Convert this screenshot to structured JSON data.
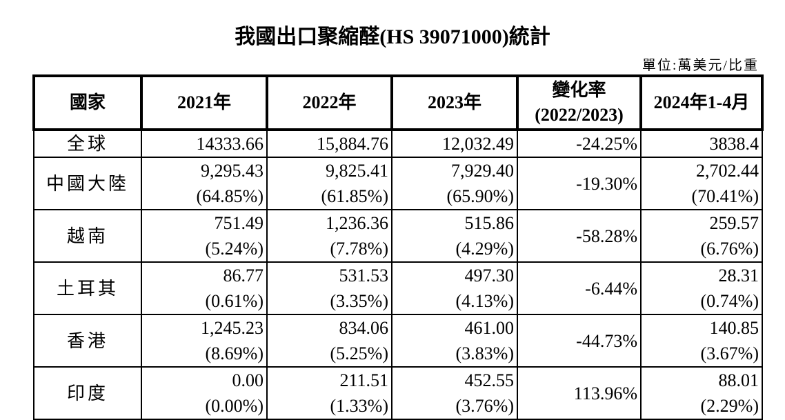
{
  "title": "我國出口聚縮醛(HS 39071000)統計",
  "unit": "單位:萬美元/比重",
  "table": {
    "header": [
      "國家",
      "2021年",
      "2022年",
      "2023年",
      [
        "變化率",
        "(2022/2023)"
      ],
      "2024年1-4月"
    ],
    "rows": [
      {
        "country": "全球",
        "cells": [
          [
            "14333.66"
          ],
          [
            "15,884.76"
          ],
          [
            "12,032.49"
          ]
        ],
        "change": "-24.25%",
        "recent": [
          "3838.4"
        ]
      },
      {
        "country": "中國大陸",
        "cells": [
          [
            "9,295.43",
            "(64.85%)"
          ],
          [
            "9,825.41",
            "(61.85%)"
          ],
          [
            "7,929.40",
            "(65.90%)"
          ]
        ],
        "change": "-19.30%",
        "recent": [
          "2,702.44",
          "(70.41%)"
        ]
      },
      {
        "country": "越南",
        "cells": [
          [
            "751.49",
            "(5.24%)"
          ],
          [
            "1,236.36",
            "(7.78%)"
          ],
          [
            "515.86",
            "(4.29%)"
          ]
        ],
        "change": "-58.28%",
        "recent": [
          "259.57",
          "(6.76%)"
        ]
      },
      {
        "country": "土耳其",
        "cells": [
          [
            "86.77",
            "(0.61%)"
          ],
          [
            "531.53",
            "(3.35%)"
          ],
          [
            "497.30",
            "(4.13%)"
          ]
        ],
        "change": "-6.44%",
        "recent": [
          "28.31",
          "(0.74%)"
        ]
      },
      {
        "country": "香港",
        "cells": [
          [
            "1,245.23",
            "(8.69%)"
          ],
          [
            "834.06",
            "(5.25%)"
          ],
          [
            "461.00",
            "(3.83%)"
          ]
        ],
        "change": "-44.73%",
        "recent": [
          "140.85",
          "(3.67%)"
        ]
      },
      {
        "country": "印度",
        "cells": [
          [
            "0.00",
            "(0.00%)"
          ],
          [
            "211.51",
            "(1.33%)"
          ],
          [
            "452.55",
            "(3.76%)"
          ]
        ],
        "change": "113.96%",
        "recent": [
          "88.01",
          "(2.29%)"
        ]
      }
    ]
  }
}
